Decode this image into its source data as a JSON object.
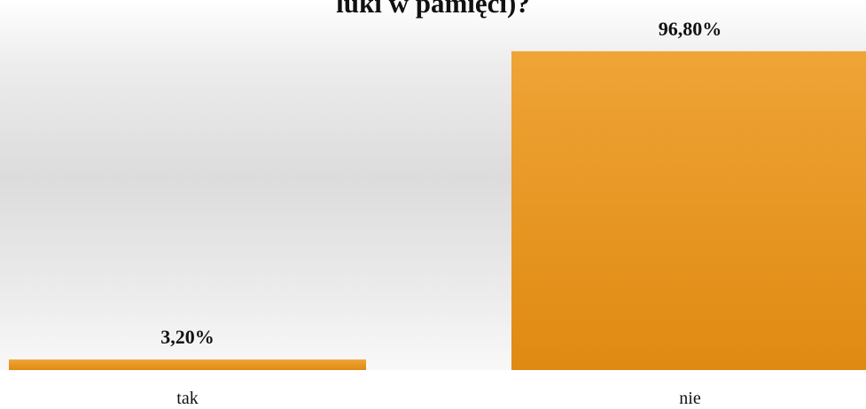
{
  "chart_data": {
    "type": "bar",
    "title": "luki w pamięci)?",
    "categories": [
      "tak",
      "nie"
    ],
    "values": [
      3.2,
      96.8
    ],
    "value_labels": [
      "3,20%",
      "96,80%"
    ],
    "ylim": [
      0,
      100
    ],
    "grid": false,
    "legend": "none",
    "bar_color_top": "#efa436",
    "bar_color_bottom": "#df8a12"
  }
}
